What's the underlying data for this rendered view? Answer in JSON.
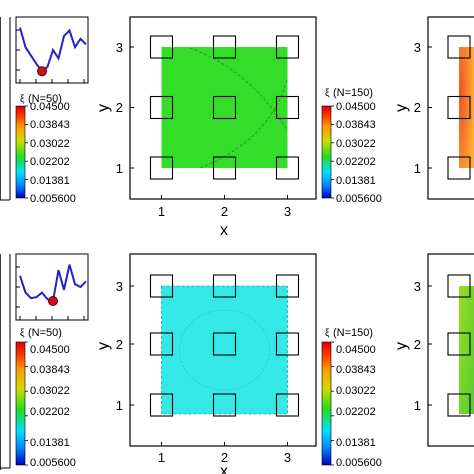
{
  "chart_data": [
    {
      "type": "heatmap",
      "panel": "top-row-center",
      "xlabel": "x",
      "ylabel": "y",
      "xticks": [
        "1",
        "2",
        "3"
      ],
      "yticks": [
        "1",
        "2",
        "3"
      ],
      "xlim": [
        0.5,
        3.5
      ],
      "ylim": [
        0.5,
        3.5
      ],
      "field_extent": [
        1,
        3
      ],
      "field_color": "#33dd2a",
      "grid": false,
      "node_squares": [
        [
          1,
          1
        ],
        [
          2,
          1
        ],
        [
          3,
          1
        ],
        [
          1,
          2
        ],
        [
          2,
          2
        ],
        [
          3,
          2
        ],
        [
          1,
          3
        ],
        [
          2,
          3
        ],
        [
          3,
          3
        ]
      ]
    },
    {
      "type": "heatmap",
      "panel": "bottom-row-center",
      "xlabel": "x",
      "ylabel": "y",
      "xticks": [
        "1",
        "2",
        "3"
      ],
      "yticks": [
        "1",
        "2",
        "3"
      ],
      "xlim": [
        0.5,
        3.5
      ],
      "ylim": [
        0.5,
        3.5
      ],
      "field_extent": [
        1,
        3
      ],
      "field_color": "#33e8e6",
      "grid": false,
      "node_squares": [
        [
          1,
          1
        ],
        [
          2,
          1
        ],
        [
          3,
          1
        ],
        [
          1,
          2
        ],
        [
          2,
          2
        ],
        [
          3,
          2
        ],
        [
          1,
          3
        ],
        [
          2,
          3
        ],
        [
          3,
          3
        ]
      ]
    },
    {
      "type": "heatmap",
      "panel": "top-row-right-partial",
      "ylabel": "y",
      "yticks": [
        "1",
        "2",
        "3"
      ],
      "ylim": [
        0.5,
        3.5
      ],
      "field_color": "#ff8822"
    },
    {
      "type": "heatmap",
      "panel": "bottom-row-right-partial",
      "ylabel": "y",
      "yticks": [
        "1",
        "2",
        "3"
      ],
      "ylim": [
        0.5,
        3.5
      ],
      "field_color": "#88dd22"
    },
    {
      "type": "line",
      "panel": "top-row-inset",
      "x": [
        0,
        1,
        2,
        3,
        4,
        5,
        6,
        7,
        8,
        9,
        10,
        11,
        12
      ],
      "values": [
        0.9,
        0.55,
        0.4,
        0.25,
        0.12,
        0.2,
        0.5,
        0.35,
        0.75,
        0.85,
        0.55,
        0.7,
        0.6
      ],
      "marker_index": 4,
      "line_color": "#2222cc",
      "marker_color": "#cc1111"
    },
    {
      "type": "line",
      "panel": "bottom-row-inset",
      "x": [
        0,
        1,
        2,
        3,
        4,
        5,
        6,
        7,
        8,
        9,
        10,
        11,
        12
      ],
      "values": [
        0.7,
        0.4,
        0.3,
        0.32,
        0.4,
        0.28,
        0.25,
        0.8,
        0.45,
        0.9,
        0.55,
        0.5,
        0.6
      ],
      "marker_index": 6,
      "line_color": "#2222cc",
      "marker_color": "#cc1111"
    }
  ],
  "colorbars": [
    {
      "title": "(N=50)",
      "symbol": "ξ",
      "labels": [
        "0.04500",
        "0.03843",
        "0.03022",
        "0.02202",
        "0.01381",
        "0.005600"
      ],
      "range": [
        0.0056,
        0.045
      ]
    },
    {
      "title": "(N=150)",
      "symbol": "ξ",
      "labels": [
        "0.04500",
        "0.03843",
        "0.03022",
        "0.02202",
        "0.01381",
        "0.005600"
      ],
      "range": [
        0.0056,
        0.045
      ]
    },
    {
      "title": "(N=50)",
      "symbol": "ξ",
      "labels": [
        "0.04500",
        "0.03843",
        "0.03022",
        "0.02202",
        "0.01381",
        "0.005600"
      ],
      "range": [
        0.0056,
        0.045
      ]
    },
    {
      "title": "(N=150)",
      "symbol": "ξ",
      "labels": [
        "0.04500",
        "0.03843",
        "0.03022",
        "0.02202",
        "0.01381",
        "0.005600"
      ],
      "range": [
        0.0056,
        0.045
      ]
    }
  ],
  "colormap": [
    "#0000bb",
    "#0088ff",
    "#00e0ff",
    "#22dd22",
    "#ccdd00",
    "#ff9900",
    "#ff3300",
    "#dd0000"
  ]
}
